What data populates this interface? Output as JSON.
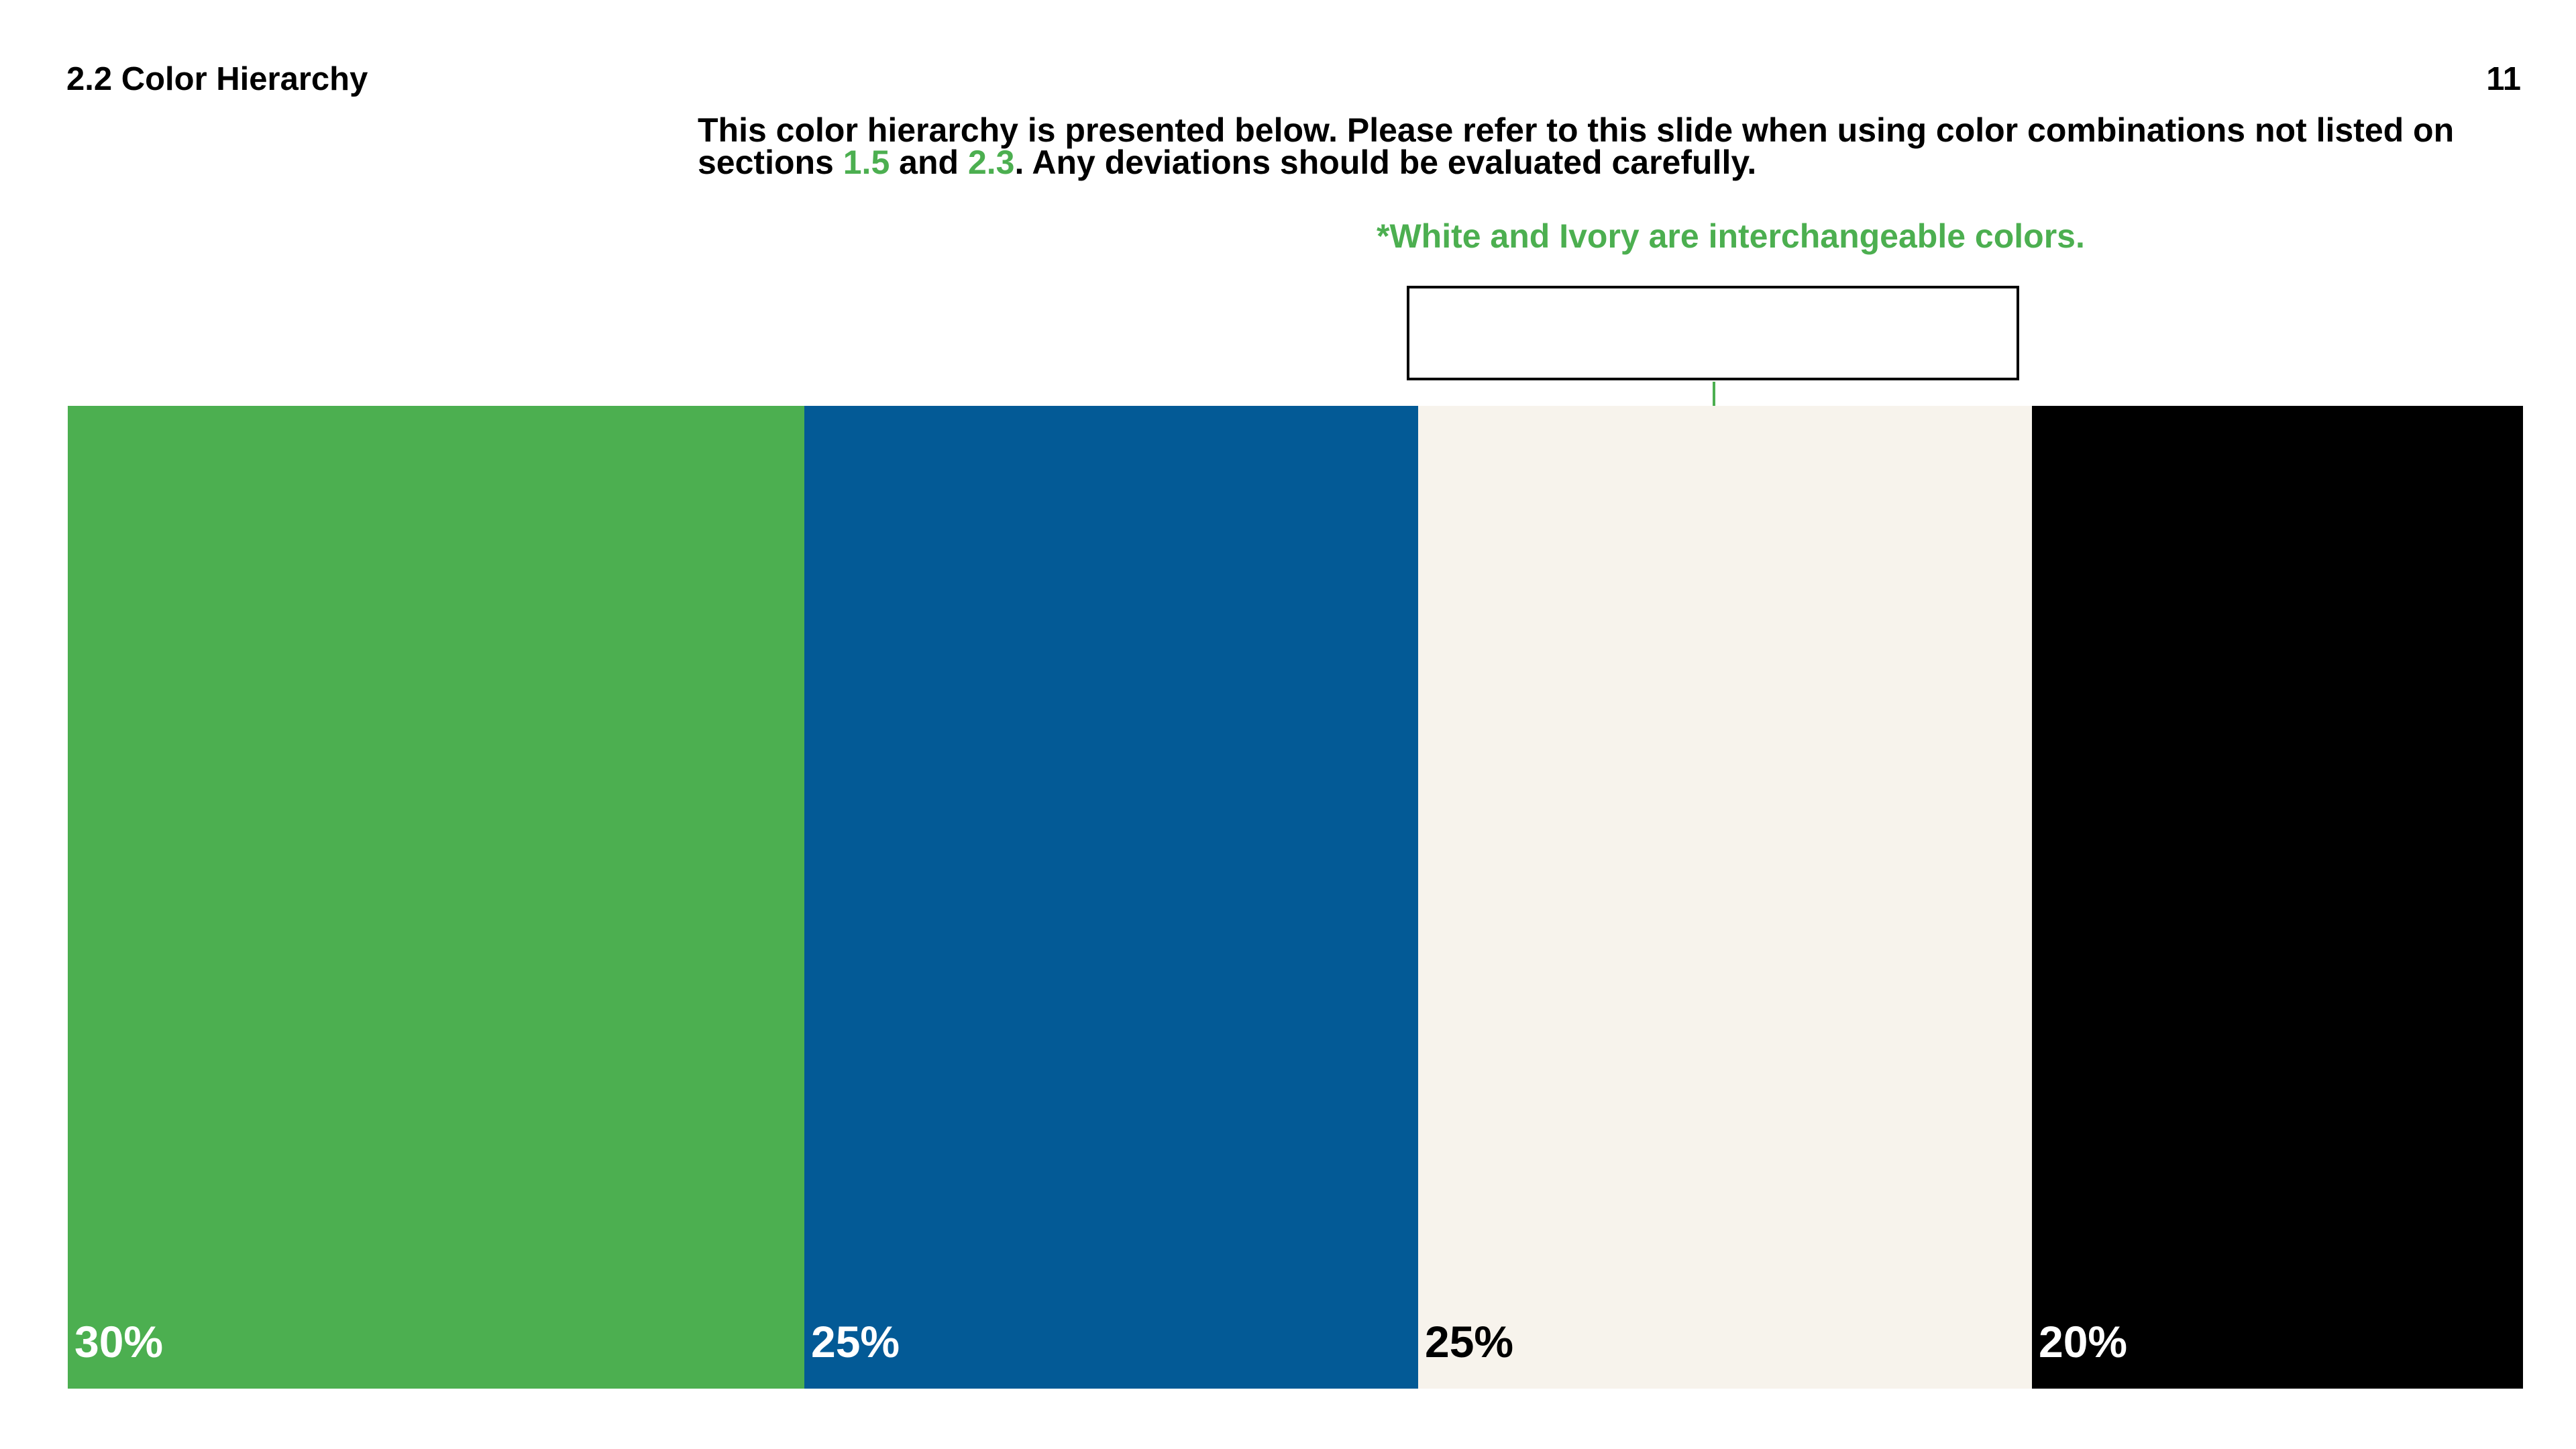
{
  "header": {
    "section_title": "2.2 Color Hierarchy",
    "page_number": "11"
  },
  "intro": {
    "line1": "This color hierarchy is presented below. Please refer to this slide when using color combinations not listed on",
    "prefix": "sections ",
    "ref1": "1.5",
    "middle": " and ",
    "ref2": "2.3",
    "suffix": ". Any deviations should be evaluated carefully."
  },
  "note": "*White and Ivory are interchangeable colors.",
  "colors": {
    "accent": "#4caf50",
    "white": "#ffffff"
  },
  "swatches": [
    {
      "name": "green",
      "label": "30%",
      "share": 0.3,
      "color": "#4caf50",
      "text_color": "#ffffff"
    },
    {
      "name": "blue",
      "label": "25%",
      "share": 0.25,
      "color": "#035a96",
      "text_color": "#ffffff"
    },
    {
      "name": "ivory",
      "label": "25%",
      "share": 0.25,
      "color": "#f7f3ec",
      "text_color": "#000000"
    },
    {
      "name": "black",
      "label": "20%",
      "share": 0.2,
      "color": "#000000",
      "text_color": "#ffffff"
    }
  ]
}
